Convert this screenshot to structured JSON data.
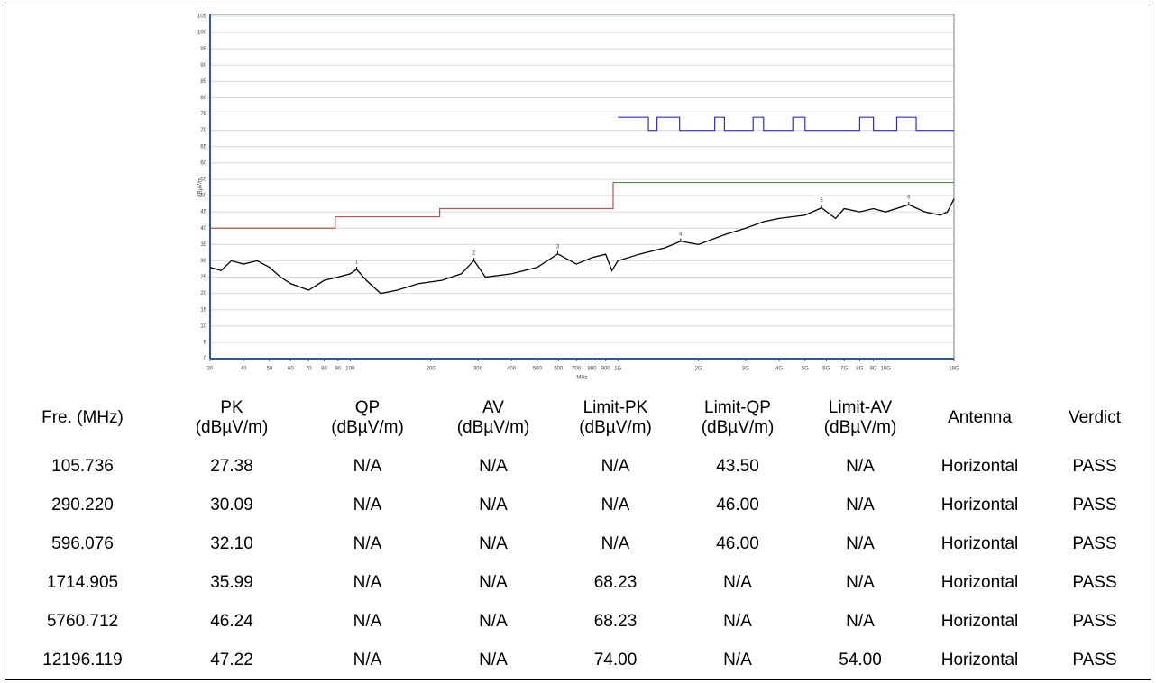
{
  "chart_data": {
    "type": "line",
    "ylabel": "dBµV/m",
    "xlabel": "MHz",
    "xscale": "log",
    "ylim": [
      0,
      105
    ],
    "yticks": [
      0,
      5,
      10,
      15,
      20,
      25,
      30,
      35,
      40,
      45,
      50,
      55,
      60,
      65,
      70,
      75,
      80,
      85,
      90,
      95,
      100,
      105
    ],
    "xlim": [
      30,
      18000
    ],
    "xticks": [
      30,
      40,
      50,
      60,
      70,
      80,
      90,
      100,
      200,
      300,
      400,
      500,
      600,
      700,
      800,
      900,
      {
        "value": 1000,
        "label": "1G"
      },
      {
        "value": 2000,
        "label": "2G"
      },
      {
        "value": 3000,
        "label": "3G"
      },
      {
        "value": 4000,
        "label": "4G"
      },
      {
        "value": 5000,
        "label": "5G"
      },
      {
        "value": 6000,
        "label": "6G"
      },
      {
        "value": 7000,
        "label": "7G"
      },
      {
        "value": 8000,
        "label": "8G"
      },
      {
        "value": 9000,
        "label": "9G"
      },
      {
        "value": 10000,
        "label": "10G"
      },
      {
        "value": 18000,
        "label": "18G"
      }
    ],
    "grid": true,
    "series": [
      {
        "color": "#000000",
        "x": [
          30,
          33,
          36,
          40,
          45,
          50,
          55,
          60,
          70,
          80,
          90,
          100,
          105.736,
          115,
          130,
          150,
          180,
          220,
          260,
          290.22,
          320,
          400,
          500,
          596.076,
          700,
          800,
          900,
          950,
          1000,
          1200,
          1500,
          1714.905,
          2000,
          2500,
          3000,
          3500,
          4000,
          5000,
          5760.712,
          6500,
          7000,
          8000,
          9000,
          10000,
          12196.119,
          14000,
          16000,
          17000,
          18000
        ],
        "values": [
          28,
          27,
          30,
          29,
          30,
          28,
          25,
          23,
          21,
          24,
          25,
          26,
          27.38,
          24,
          20,
          21,
          23,
          24,
          26,
          30.09,
          25,
          26,
          28,
          32.1,
          29,
          31,
          32,
          27,
          30,
          32,
          34,
          35.99,
          35,
          38,
          40,
          42,
          43,
          44,
          46.24,
          43,
          46,
          45,
          46,
          45,
          47.22,
          45,
          44,
          45,
          49
        ]
      },
      {
        "color": "#c0504d",
        "x": [
          30,
          88,
          88,
          216,
          216,
          960,
          960
        ],
        "values": [
          40,
          40,
          43.5,
          43.5,
          46,
          46,
          54
        ]
      },
      {
        "color": "#4a8a4a",
        "x": [
          960,
          18000
        ],
        "values": [
          54,
          54
        ]
      },
      {
        "color": "#3030c0",
        "x": [
          1000,
          1300,
          1300,
          1400,
          1400,
          1700,
          1700,
          2300,
          2300,
          2500,
          2500,
          3200,
          3200,
          3500,
          3500,
          4500,
          4500,
          5000,
          5000,
          8000,
          8000,
          9000,
          9000,
          11000,
          11000,
          13000,
          13000,
          18000
        ],
        "values": [
          74,
          74,
          70,
          70,
          74,
          74,
          70,
          70,
          74,
          74,
          70,
          70,
          74,
          74,
          70,
          70,
          74,
          74,
          70,
          70,
          74,
          74,
          70,
          70,
          74,
          74,
          70,
          70
        ]
      }
    ],
    "markers": [
      {
        "label": "1",
        "x": 105.736,
        "value": 27.38
      },
      {
        "label": "2",
        "x": 290.22,
        "value": 30.09
      },
      {
        "label": "3",
        "x": 596.076,
        "value": 32.1
      },
      {
        "label": "4",
        "x": 1714.905,
        "value": 35.99
      },
      {
        "label": "5",
        "x": 5760.712,
        "value": 46.24
      },
      {
        "label": "6",
        "x": 12196.119,
        "value": 47.22
      }
    ]
  },
  "table": {
    "header": [
      "Fre. (MHz)",
      "PK\n(dBµV/m)",
      "QP\n(dBµV/m)",
      "AV\n(dBµV/m)",
      "Limit-PK\n(dBµV/m)",
      "Limit-QP\n(dBµV/m)",
      "Limit-AV\n(dBµV/m)",
      "Antenna",
      "Verdict"
    ],
    "rows": [
      [
        "105.736",
        "27.38",
        "N/A",
        "N/A",
        "N/A",
        "43.50",
        "N/A",
        "Horizontal",
        "PASS"
      ],
      [
        "290.220",
        "30.09",
        "N/A",
        "N/A",
        "N/A",
        "46.00",
        "N/A",
        "Horizontal",
        "PASS"
      ],
      [
        "596.076",
        "32.10",
        "N/A",
        "N/A",
        "N/A",
        "46.00",
        "N/A",
        "Horizontal",
        "PASS"
      ],
      [
        "1714.905",
        "35.99",
        "N/A",
        "N/A",
        "68.23",
        "N/A",
        "N/A",
        "Horizontal",
        "PASS"
      ],
      [
        "5760.712",
        "46.24",
        "N/A",
        "N/A",
        "68.23",
        "N/A",
        "N/A",
        "Horizontal",
        "PASS"
      ],
      [
        "12196.119",
        "47.22",
        "N/A",
        "N/A",
        "74.00",
        "N/A",
        "54.00",
        "Horizontal",
        "PASS"
      ]
    ]
  }
}
